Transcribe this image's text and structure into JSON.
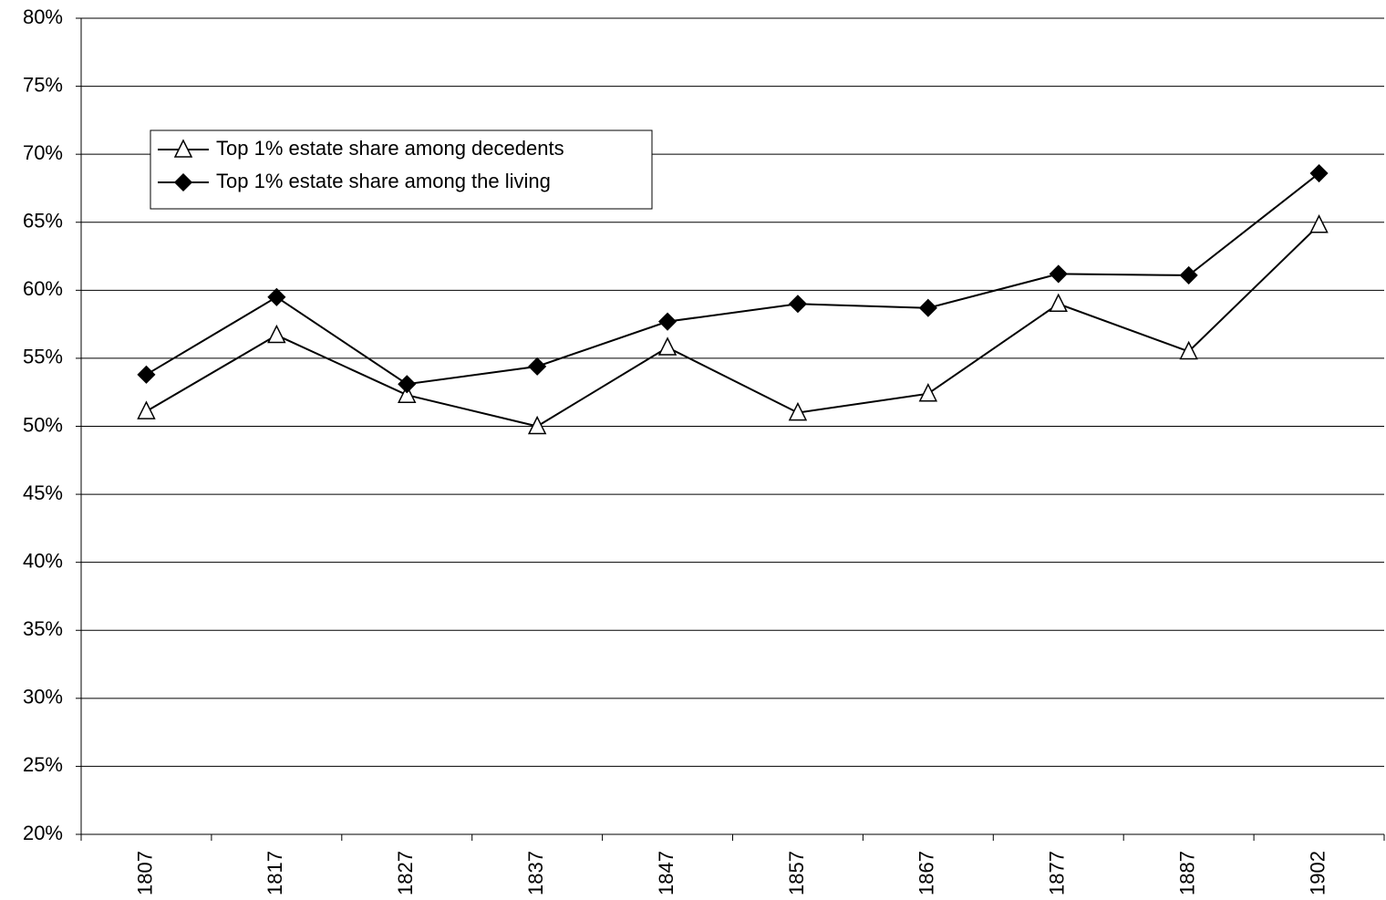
{
  "chart_data": {
    "type": "line",
    "categories": [
      "1807",
      "1817",
      "1827",
      "1837",
      "1847",
      "1857",
      "1867",
      "1877",
      "1887",
      "1902"
    ],
    "series": [
      {
        "name": "Top 1% estate share among decedents",
        "color": "#000000",
        "marker": "triangle",
        "values": [
          51.1,
          56.7,
          52.3,
          50.0,
          55.8,
          51.0,
          52.4,
          59.0,
          55.5,
          64.8
        ]
      },
      {
        "name": "Top 1% estate share among the living",
        "color": "#000000",
        "marker": "diamond",
        "values": [
          53.8,
          59.5,
          53.1,
          54.4,
          57.7,
          59.0,
          58.7,
          61.2,
          61.1,
          68.6
        ]
      }
    ],
    "ylim": [
      20,
      80
    ],
    "yticks": [
      {
        "value": 20,
        "label": "20%"
      },
      {
        "value": 25,
        "label": "25%"
      },
      {
        "value": 30,
        "label": "30%"
      },
      {
        "value": 35,
        "label": "35%"
      },
      {
        "value": 40,
        "label": "40%"
      },
      {
        "value": 45,
        "label": "45%"
      },
      {
        "value": 50,
        "label": "50%"
      },
      {
        "value": 55,
        "label": "55%"
      },
      {
        "value": 60,
        "label": "60%"
      },
      {
        "value": 65,
        "label": "65%"
      },
      {
        "value": 70,
        "label": "70%"
      },
      {
        "value": 75,
        "label": "75%"
      },
      {
        "value": 80,
        "label": "80%"
      }
    ],
    "grid": true,
    "legend": "upper left"
  }
}
